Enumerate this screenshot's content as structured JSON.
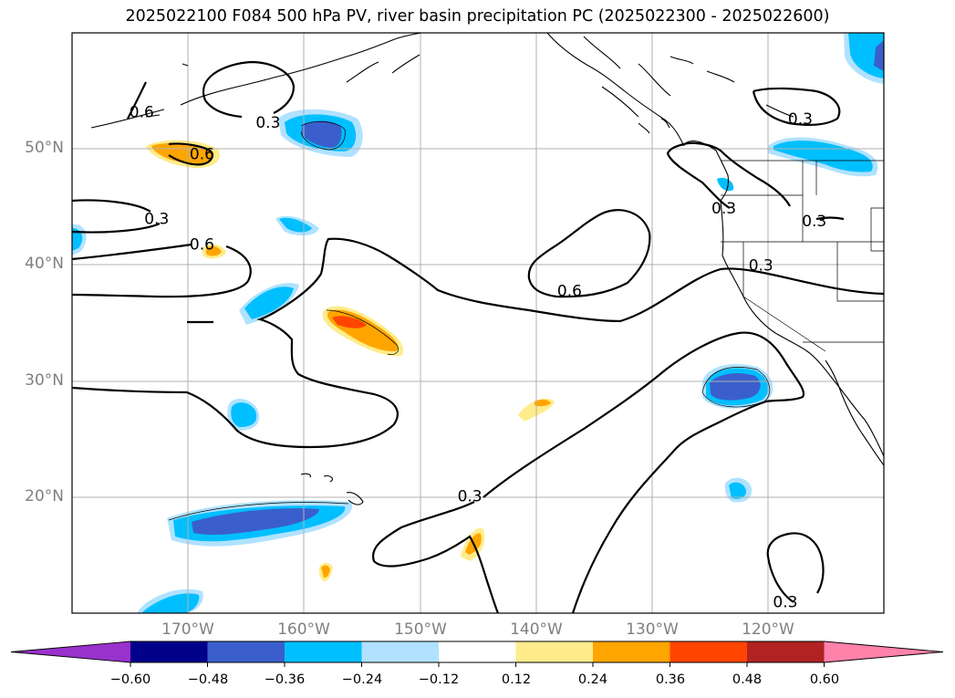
{
  "title": "2025022100 F084 500 hPa PV, river basin precipitation PC (2025022300 - 2025022600)",
  "map": {
    "extent_lon": [
      -180,
      -110
    ],
    "extent_lat": [
      10,
      60
    ],
    "lat_labels": [
      {
        "lat": 50,
        "text": "50°N"
      },
      {
        "lat": 40,
        "text": "40°N"
      },
      {
        "lat": 30,
        "text": "30°N"
      },
      {
        "lat": 20,
        "text": "20°N"
      }
    ],
    "lon_labels": [
      {
        "lon": -170,
        "text": "170°W"
      },
      {
        "lon": -160,
        "text": "160°W"
      },
      {
        "lon": -150,
        "text": "150°W"
      },
      {
        "lon": -140,
        "text": "140°W"
      },
      {
        "lon": -130,
        "text": "130°W"
      },
      {
        "lon": -120,
        "text": "120°W"
      }
    ],
    "contour_labels": [
      {
        "text": "0.6",
        "lon": -174,
        "lat": 53.2
      },
      {
        "text": "0.3",
        "lon": -163.1,
        "lat": 52.3
      },
      {
        "text": "0.6",
        "lon": -168.8,
        "lat": 49.6
      },
      {
        "text": "0.3",
        "lon": -172.7,
        "lat": 44
      },
      {
        "text": "0.6",
        "lon": -168.8,
        "lat": 41.8
      },
      {
        "text": "0.6",
        "lon": -137.1,
        "lat": 37.8
      },
      {
        "text": "0.3",
        "lon": -123.8,
        "lat": 44.9
      },
      {
        "text": "0.3",
        "lon": -116,
        "lat": 43.8
      },
      {
        "text": "0.3",
        "lon": -117.2,
        "lat": 52.6
      },
      {
        "text": "0.3",
        "lon": -120.6,
        "lat": 40
      },
      {
        "text": "0.3",
        "lon": -145.7,
        "lat": 20.1
      },
      {
        "text": "0.3",
        "lon": -118.5,
        "lat": 11
      }
    ]
  },
  "colorbar": {
    "colors": [
      "#9932cc",
      "#00008b",
      "#3a5fcd",
      "#00bfff",
      "#b0e2ff",
      "#ffffff",
      "#ffec8b",
      "#ffa500",
      "#ff4500",
      "#b22222",
      "#ff82ab"
    ],
    "ticks": [
      "−0.60",
      "−0.48",
      "−0.36",
      "−0.24",
      "−0.12",
      "0.12",
      "0.24",
      "0.36",
      "0.48",
      "0.60"
    ]
  }
}
